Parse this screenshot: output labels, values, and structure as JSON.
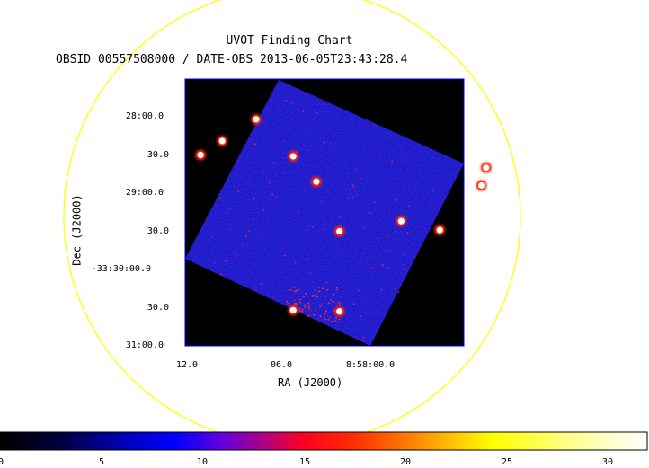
{
  "chart": {
    "title": "UVOT Finding Chart",
    "subtitle": "OBSID 00557508000 / DATE-OBS 2013-06-05T23:43:28.4",
    "ra_label": "RA (J2000)",
    "dec_label": "Dec (J2000)",
    "ra_ticks": [
      "12.0",
      "06.0",
      "8:58:00.0"
    ],
    "dec_ticks": [
      "28:00.0",
      "30.0",
      "29:00.0",
      "30.0",
      "-33:30:00.0",
      "30.0",
      "31:00.0"
    ],
    "circle_color": "#ffff00",
    "frame_color": "#0000ff"
  },
  "colorbar": {
    "ticks": [
      "0",
      "5",
      "10",
      "15",
      "20",
      "25",
      "30"
    ],
    "range": [
      0,
      32
    ],
    "colors": [
      "#000000",
      "#0000ff",
      "#ff0000",
      "#ffff00",
      "#ffffff"
    ]
  },
  "chart_data": {
    "type": "heatmap",
    "title": "UVOT Finding Chart",
    "subtitle": "OBSID 00557508000 / DATE-OBS 2013-06-05T23:43:28.4",
    "xlabel": "RA (J2000)",
    "ylabel": "Dec (J2000)",
    "x_ticks": [
      "12.0",
      "06.0",
      "8:58:00.0"
    ],
    "y_ticks": [
      "28:00.0",
      "30.0",
      "29:00.0",
      "30.0",
      "-33:30:00.0",
      "30.0",
      "31:00.0"
    ],
    "colorbar_range": [
      0,
      32
    ],
    "colorbar_ticks": [
      0,
      5,
      10,
      15,
      20,
      25,
      30
    ],
    "sources": [
      {
        "ra": "8:58:07.4",
        "dec": "-33:28:02",
        "intensity": 32
      },
      {
        "ra": "8:58:09.6",
        "dec": "-33:28:19",
        "intensity": 32
      },
      {
        "ra": "8:58:11.0",
        "dec": "-33:28:30",
        "intensity": 32
      },
      {
        "ra": "8:58:05.0",
        "dec": "-33:28:31",
        "intensity": 32
      },
      {
        "ra": "8:58:03.5",
        "dec": "-33:28:51",
        "intensity": 32
      },
      {
        "ra": "8:57:58.0",
        "dec": "-33:29:22",
        "intensity": 32
      },
      {
        "ra": "8:57:55.5",
        "dec": "-33:29:29",
        "intensity": 32
      },
      {
        "ra": "8:57:52.5",
        "dec": "-33:28:40",
        "intensity": 32
      },
      {
        "ra": "8:57:52.8",
        "dec": "-33:28:54",
        "intensity": 32
      },
      {
        "ra": "8:58:02.0",
        "dec": "-33:29:30",
        "intensity": 32
      },
      {
        "ra": "8:58:05.0",
        "dec": "-33:30:32",
        "intensity": 32
      },
      {
        "ra": "8:58:02.0",
        "dec": "-33:30:33",
        "intensity": 32
      }
    ]
  }
}
